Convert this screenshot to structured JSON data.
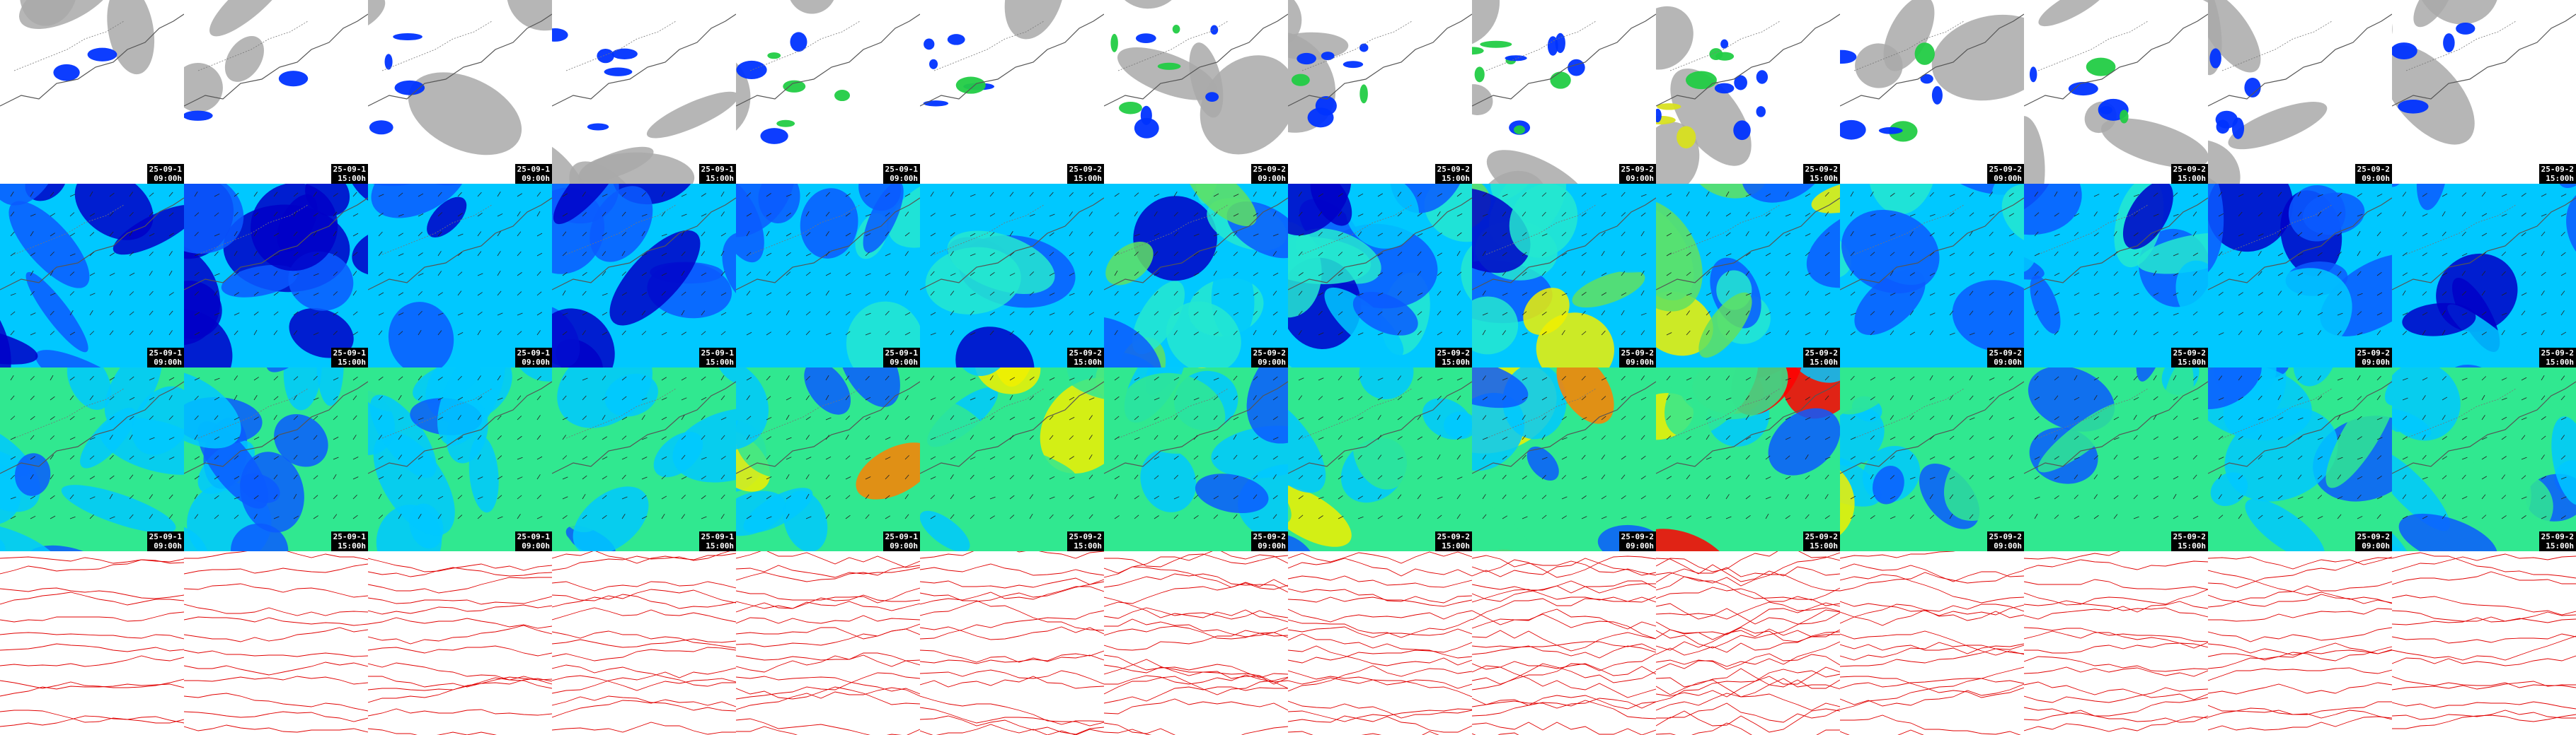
{
  "map_panel": {
    "columns": 14,
    "rows": [
      {
        "product": "cloud-precip",
        "colors": [
          "#ffffff",
          "#a9a9a9",
          "#0033ff",
          "#22cc44",
          "#d8e020"
        ]
      },
      {
        "product": "wind-low",
        "colors": [
          "#0000c8",
          "#0a5aff",
          "#00c8ff",
          "#24e8d0",
          "#60e060",
          "#f0f000"
        ]
      },
      {
        "product": "wind-high",
        "colors": [
          "#0a5aff",
          "#00c8ff",
          "#30e890",
          "#f0f000",
          "#ff8000",
          "#ff0000"
        ]
      },
      {
        "product": "pressure-contours",
        "colors": [
          "#ffffff",
          "#e00000"
        ]
      }
    ],
    "dates": [
      "25-09-1",
      "25-09-1",
      "25-09-1",
      "25-09-1",
      "25-09-1",
      "25-09-2",
      "25-09-2",
      "25-09-2",
      "25-09-2",
      "25-09-2",
      "25-09-2",
      "25-09-2",
      "25-09-2",
      "25-09-2"
    ],
    "times": [
      "09:00h",
      "15:00h",
      "09:00h",
      "15:00h",
      "09:00h",
      "15:00h",
      "09:00h",
      "15:00h",
      "09:00h",
      "15:00h",
      "09:00h",
      "15:00h",
      "09:00h",
      "15:00h"
    ],
    "intensity": [
      0.15,
      0.15,
      0.25,
      0.35,
      0.5,
      0.45,
      0.65,
      0.55,
      0.75,
      0.95,
      0.5,
      0.45,
      0.35,
      0.3
    ]
  }
}
